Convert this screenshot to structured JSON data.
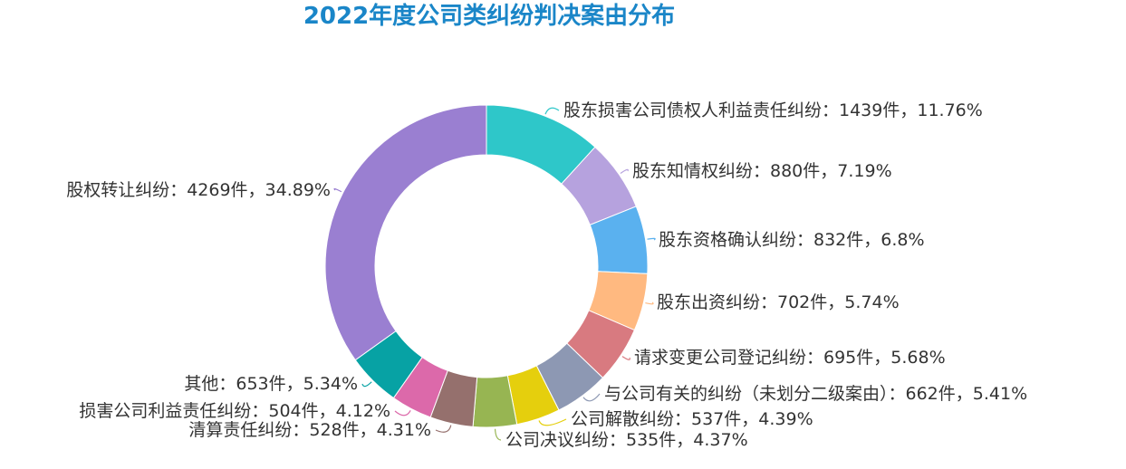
{
  "chart_data": {
    "type": "pie",
    "title": "2022年度公司类纠纷判决案由分布",
    "slices": [
      {
        "name": "股东损害公司债权人利益责任纠纷",
        "count_label": "1439件",
        "percent_label": "11.76%",
        "value": 11.76,
        "color": "#2ec7c9"
      },
      {
        "name": "股东知情权纠纷",
        "count_label": "880件",
        "percent_label": "7.19%",
        "value": 7.19,
        "color": "#b6a2de"
      },
      {
        "name": "股东资格确认纠纷",
        "count_label": "832件",
        "percent_label": "6.8%",
        "value": 6.8,
        "color": "#5ab1ef"
      },
      {
        "name": "股东出资纠纷",
        "count_label": "702件",
        "percent_label": "5.74%",
        "value": 5.74,
        "color": "#ffb980"
      },
      {
        "name": "请求变更公司登记纠纷",
        "count_label": "695件",
        "percent_label": "5.68%",
        "value": 5.68,
        "color": "#d87a80"
      },
      {
        "name": "与公司有关的纠纷（未划分二级案由）",
        "count_label": "662件",
        "percent_label": "5.41%",
        "value": 5.41,
        "color": "#8d98b3"
      },
      {
        "name": "公司解散纠纷",
        "count_label": "537件",
        "percent_label": "4.39%",
        "value": 4.39,
        "color": "#e5cf0d"
      },
      {
        "name": "公司决议纠纷",
        "count_label": "535件",
        "percent_label": "4.37%",
        "value": 4.37,
        "color": "#97b552"
      },
      {
        "name": "清算责任纠纷",
        "count_label": "528件",
        "percent_label": "4.31%",
        "value": 4.31,
        "color": "#95706d"
      },
      {
        "name": "损害公司利益责任纠纷",
        "count_label": "504件",
        "percent_label": "4.12%",
        "value": 4.12,
        "color": "#dc69aa"
      },
      {
        "name": "其他",
        "count_label": "653件",
        "percent_label": "5.34%",
        "value": 5.34,
        "color": "#07a2a4"
      },
      {
        "name": "股权转让纠纷",
        "count_label": "4269件",
        "percent_label": "34.89%",
        "value": 34.89,
        "color": "#9a7fd1"
      }
    ]
  }
}
